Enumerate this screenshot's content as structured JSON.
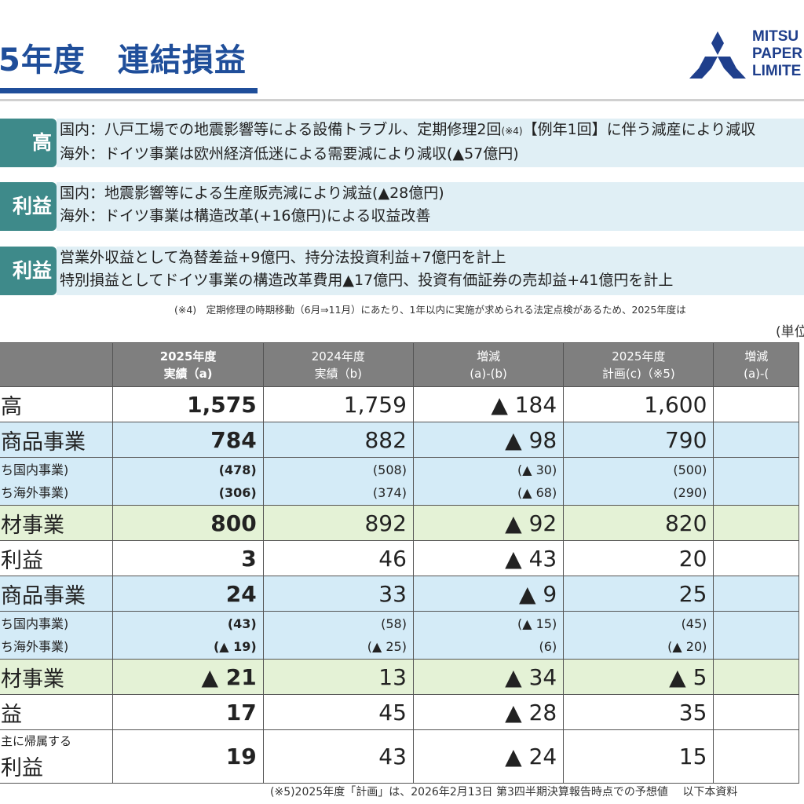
{
  "header": {
    "title": "5年度　連結損益",
    "logo_text": [
      "MITSU",
      "PAPER",
      "LIMITE"
    ],
    "logo_color": "#1f3f8c"
  },
  "summary": [
    {
      "tag": "高",
      "lines": [
        "国内：八戸工場での地震影響等による設備トラブル、定期修理2回",
        "海外：ドイツ事業は欧州経済低迷による需要減により減収(▲57億円)"
      ],
      "inline_note": "(※4)",
      "line1_suffix": "【例年1回】に伴う減産により減収"
    },
    {
      "tag": "利益",
      "lines": [
        "国内：地震影響等による生産販売減により減益(▲28億円)",
        "海外：ドイツ事業は構造改革(+16億円)による収益改善"
      ]
    },
    {
      "tag": "利益",
      "lines": [
        "営業外収益として為替差益+9億円、持分法投資利益+7億円を計上",
        "特別損益としてドイツ事業の構造改革費用▲17億円、投資有価証券の売却益+41億円を計上"
      ]
    }
  ],
  "note1": "(※4)　定期修理の時期移動（6月⇒11月）にあたり、1年以内に実施が求められる法定点検があるため、2025年度は",
  "unit": "(単位",
  "table": {
    "headers": [
      {
        "l1": "2025年度",
        "l2": "実績（a)"
      },
      {
        "l1": "2024年度",
        "l2": "実績（b)"
      },
      {
        "l1": "増減",
        "l2": "(a)-(b)"
      },
      {
        "l1": "2025年度",
        "l2": "計画(c)（※5)"
      },
      {
        "l1": "増減",
        "l2": "(a)-("
      }
    ],
    "rows": {
      "sales": {
        "label": "高",
        "a": "1,575",
        "b": "1,759",
        "d": "▲ 184",
        "c": "1,600"
      },
      "seg1_sales": {
        "label": "商品事業",
        "a": "784",
        "b": "882",
        "d": "▲ 98",
        "c": "790"
      },
      "seg1_sub_sales": {
        "label1": "ち国内事業)",
        "label2": "ち海外事業)",
        "a1": "(478)",
        "a2": "(306)",
        "b1": "(508)",
        "b2": "(374)",
        "d1": "(▲ 30)",
        "d2": "(▲ 68)",
        "c1": "(500)",
        "c2": "(290)"
      },
      "seg2_sales": {
        "label": "材事業",
        "a": "800",
        "b": "892",
        "d": "▲ 92",
        "c": "820"
      },
      "op_profit": {
        "label": "利益",
        "a": "3",
        "b": "46",
        "d": "▲ 43",
        "c": "20"
      },
      "seg1_profit": {
        "label": "商品事業",
        "a": "24",
        "b": "33",
        "d": "▲ 9",
        "c": "25"
      },
      "seg1_sub_profit": {
        "label1": "ち国内事業)",
        "label2": "ち海外事業)",
        "a1": "(43)",
        "a2": "(▲ 19)",
        "b1": "(58)",
        "b2": "(▲ 25)",
        "d1": "(▲ 15)",
        "d2": "(6)",
        "c1": "(45)",
        "c2": "(▲ 20)"
      },
      "seg2_profit": {
        "label": "材事業",
        "a": "▲ 21",
        "b": "13",
        "d": "▲ 34",
        "c": "▲ 5"
      },
      "ord_profit": {
        "label": "益",
        "a": "17",
        "b": "45",
        "d": "▲ 28",
        "c": "35"
      },
      "net_profit": {
        "label1": "主に帰属する",
        "label2": "利益",
        "a": "19",
        "b": "43",
        "d": "▲ 24",
        "c": "15"
      }
    }
  },
  "note2": "(※5)2025年度「計画」は、2026年2月13日 第3四半期決算報告時点での予想値　 以下本資料"
}
